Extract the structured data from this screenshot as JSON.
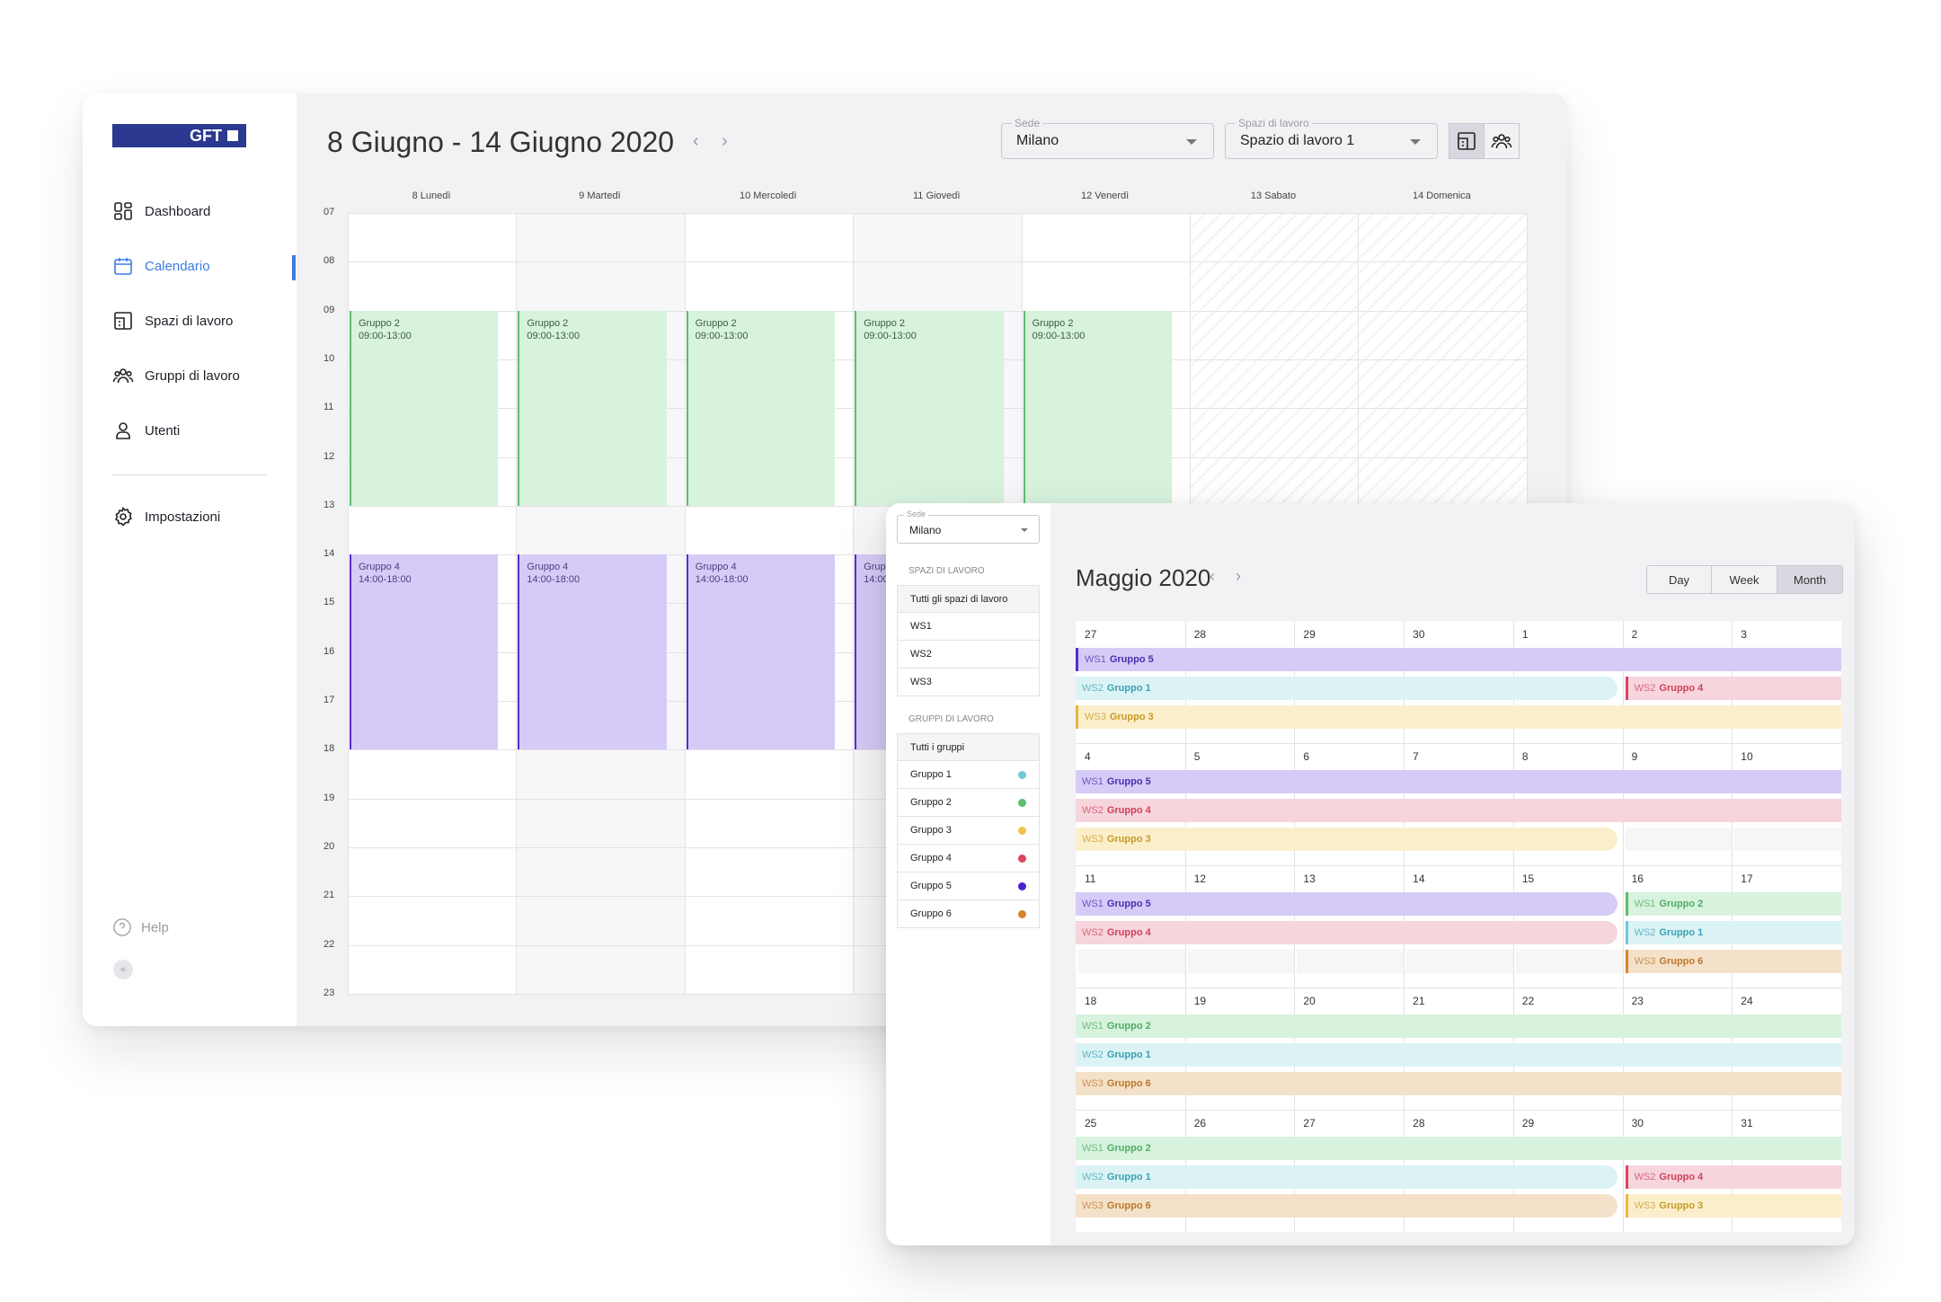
{
  "week_window": {
    "logo": "GFT",
    "nav": [
      {
        "label": "Dashboard",
        "icon": "dashboard-icon"
      },
      {
        "label": "Calendario",
        "icon": "calendar-icon",
        "active": true
      },
      {
        "label": "Spazi di lavoro",
        "icon": "workspace-icon"
      },
      {
        "label": "Gruppi di lavoro",
        "icon": "group-icon"
      },
      {
        "label": "Utenti",
        "icon": "user-icon"
      }
    ],
    "settings": "Impostazioni",
    "help": "Help",
    "collapse": "«",
    "title": "8 Giugno - 14 Giugno 2020",
    "sede": {
      "label": "Sede",
      "value": "Milano"
    },
    "spazi": {
      "label": "Spazi di lavoro",
      "value": "Spazio di lavoro 1"
    },
    "days": [
      "8 Lunedì",
      "9 Martedì",
      "10 Mercoledì",
      "11 Giovedì",
      "12 Venerdì",
      "13 Sabato",
      "14 Domenica"
    ],
    "hours": [
      "07",
      "08",
      "09",
      "10",
      "11",
      "12",
      "13",
      "14",
      "15",
      "16",
      "17",
      "18",
      "19",
      "20",
      "21",
      "22",
      "23"
    ],
    "events": [
      {
        "name": "Gruppo 2",
        "time": "09:00-13:00",
        "color": "green"
      },
      {
        "name": "Gruppo 4",
        "time": "14:00-18:00",
        "color": "purple"
      }
    ],
    "accent": "#3d7be3"
  },
  "month_window": {
    "sede": {
      "label": "Sede",
      "value": "Milano"
    },
    "spazi_title": "SPAZI DI LAVORO",
    "spazi": [
      "Tutti gli spazi di lavoro",
      "WS1",
      "WS2",
      "WS3"
    ],
    "gruppi_title": "GRUPPI DI LAVORO",
    "gruppi": [
      {
        "label": "Tutti i gruppi",
        "color": ""
      },
      {
        "label": "Gruppo 1",
        "color": "#6fc8d6"
      },
      {
        "label": "Gruppo 2",
        "color": "#5bbd6d"
      },
      {
        "label": "Gruppo 3",
        "color": "#f2c14e"
      },
      {
        "label": "Gruppo 4",
        "color": "#e0445f"
      },
      {
        "label": "Gruppo 5",
        "color": "#4a1fd0"
      },
      {
        "label": "Gruppo 6",
        "color": "#d9822b"
      }
    ],
    "title": "Maggio 2020",
    "views": [
      "Day",
      "Week",
      "Month"
    ],
    "weeks": [
      {
        "days": [
          "27",
          "28",
          "29",
          "30",
          "1",
          "2",
          "3"
        ],
        "bars": [
          {
            "ws": "WS1",
            "g": "Gruppo 5",
            "c": "purple",
            "from": 0,
            "to": 7,
            "edge": true
          },
          {
            "ws": "WS2",
            "g": "Gruppo 1",
            "c": "cyan",
            "from": 0,
            "to": 5,
            "round": true
          },
          {
            "ws": "WS2",
            "g": "Gruppo 4",
            "c": "pink",
            "from": 5,
            "to": 7,
            "row": 1,
            "edge": true
          },
          {
            "ws": "WS3",
            "g": "Gruppo 3",
            "c": "yellow",
            "from": 0,
            "to": 7,
            "edge": true
          }
        ]
      },
      {
        "days": [
          "4",
          "5",
          "6",
          "7",
          "8",
          "9",
          "10"
        ],
        "bars": [
          {
            "ws": "WS1",
            "g": "Gruppo 5",
            "c": "purple",
            "from": 0,
            "to": 7
          },
          {
            "ws": "WS2",
            "g": "Gruppo 4",
            "c": "pink",
            "from": 0,
            "to": 7
          },
          {
            "ws": "WS3",
            "g": "Gruppo 3",
            "c": "yellow",
            "from": 0,
            "to": 5,
            "round": true
          }
        ]
      },
      {
        "days": [
          "11",
          "12",
          "13",
          "14",
          "15",
          "16",
          "17"
        ],
        "bars": [
          {
            "ws": "WS1",
            "g": "Gruppo 5",
            "c": "purple",
            "from": 0,
            "to": 5,
            "round": true
          },
          {
            "ws": "WS1",
            "g": "Gruppo 2",
            "c": "green",
            "from": 5,
            "to": 7,
            "row": 0,
            "edge": true
          },
          {
            "ws": "WS2",
            "g": "Gruppo 4",
            "c": "pink",
            "from": 0,
            "to": 5,
            "round": true
          },
          {
            "ws": "WS2",
            "g": "Gruppo 1",
            "c": "cyan",
            "from": 5,
            "to": 7,
            "row": 1,
            "edge": true
          },
          {
            "ws": "WS3",
            "g": "Gruppo 6",
            "c": "orange",
            "from": 5,
            "to": 7,
            "row": 2,
            "edge": true
          }
        ]
      },
      {
        "days": [
          "18",
          "19",
          "20",
          "21",
          "22",
          "23",
          "24"
        ],
        "bars": [
          {
            "ws": "WS1",
            "g": "Gruppo 2",
            "c": "green",
            "from": 0,
            "to": 7
          },
          {
            "ws": "WS2",
            "g": "Gruppo 1",
            "c": "cyan",
            "from": 0,
            "to": 7
          },
          {
            "ws": "WS3",
            "g": "Gruppo 6",
            "c": "orange",
            "from": 0,
            "to": 7
          }
        ]
      },
      {
        "days": [
          "25",
          "26",
          "27",
          "28",
          "29",
          "30",
          "31"
        ],
        "bars": [
          {
            "ws": "WS1",
            "g": "Gruppo 2",
            "c": "green",
            "from": 0,
            "to": 7
          },
          {
            "ws": "WS2",
            "g": "Gruppo 1",
            "c": "cyan",
            "from": 0,
            "to": 5,
            "round": true
          },
          {
            "ws": "WS2",
            "g": "Gruppo 4",
            "c": "pink",
            "from": 5,
            "to": 7,
            "row": 1,
            "edge": true
          },
          {
            "ws": "WS3",
            "g": "Gruppo 6",
            "c": "orange",
            "from": 0,
            "to": 5,
            "round": true
          },
          {
            "ws": "WS3",
            "g": "Gruppo 3",
            "c": "yellow",
            "from": 5,
            "to": 7,
            "row": 2,
            "edge": true
          }
        ]
      }
    ]
  }
}
